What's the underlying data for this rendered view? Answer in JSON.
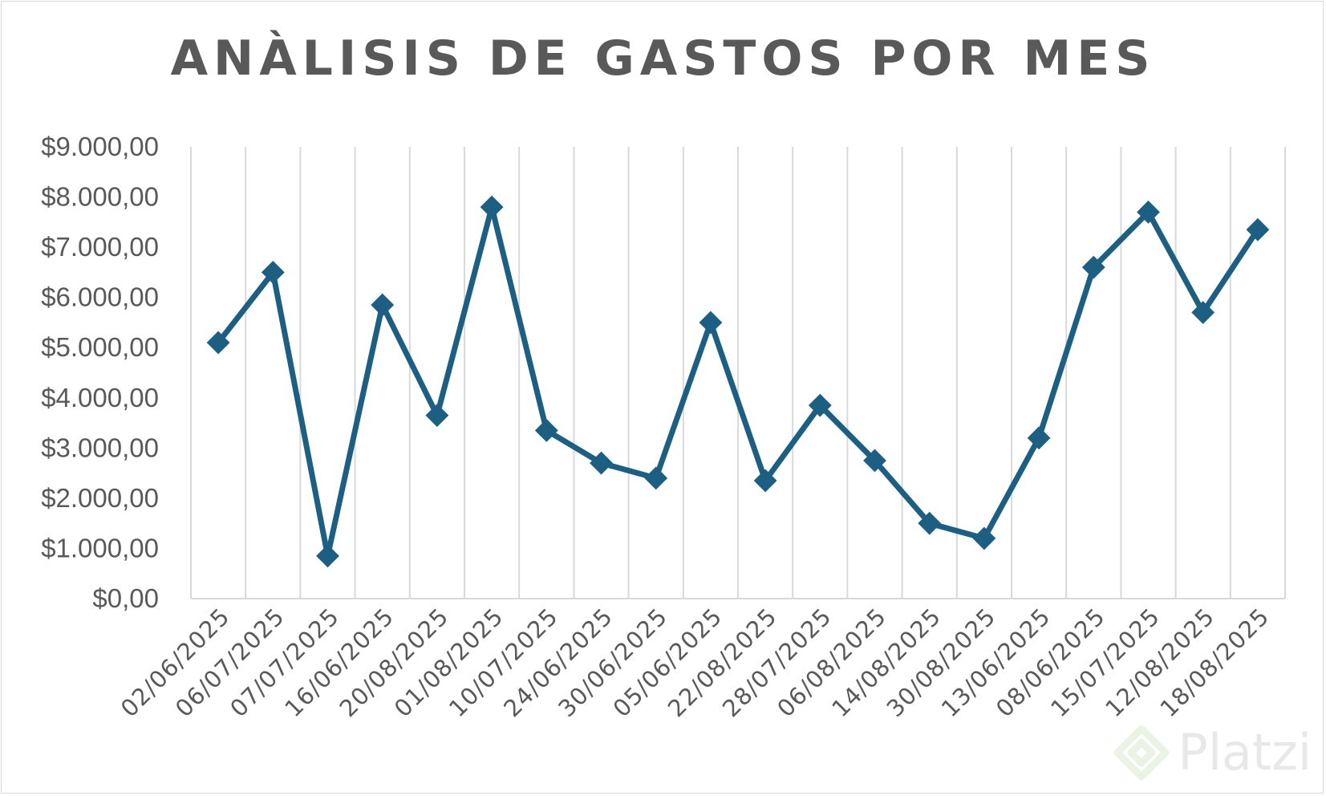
{
  "chart_data": {
    "type": "line",
    "title": "ANÀLISIS DE GASTOS POR MES",
    "categories": [
      "02/06/2025",
      "06/07/2025",
      "07/07/2025",
      "16/06/2025",
      "20/08/2025",
      "01/08/2025",
      "10/07/2025",
      "24/06/2025",
      "30/06/2025",
      "05/06/2025",
      "22/08/2025",
      "28/07/2025",
      "06/08/2025",
      "14/08/2025",
      "30/08/2025",
      "13/06/2025",
      "08/06/2025",
      "15/07/2025",
      "12/08/2025",
      "18/08/2025"
    ],
    "series": [
      {
        "values": [
          5100,
          6500,
          850,
          5850,
          3650,
          7800,
          3350,
          2700,
          2400,
          5500,
          2350,
          3850,
          2750,
          1500,
          1200,
          3200,
          6600,
          7700,
          5700,
          7350
        ]
      }
    ],
    "y_ticks": [
      "$0,00",
      "$1.000,00",
      "$2.000,00",
      "$3.000,00",
      "$4.000,00",
      "$5.000,00",
      "$6.000,00",
      "$7.000,00",
      "$8.000,00",
      "$9.000,00"
    ],
    "ylim": [
      0,
      9000
    ],
    "grid": "vertical",
    "color": "#1d5f82",
    "gridColor": "#d9d9d9"
  },
  "watermark": {
    "text": "Platzi",
    "icon": "platzi-logo-icon"
  }
}
